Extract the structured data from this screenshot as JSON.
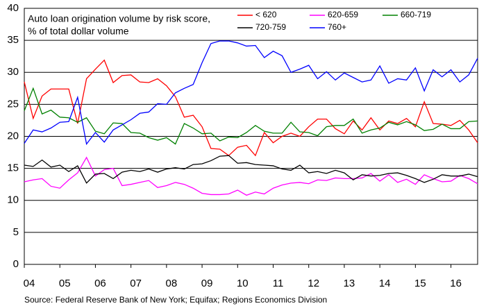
{
  "chart_data": {
    "type": "line",
    "annotation": [
      "Auto loan origination volume by risk score,",
      "% of total dollar volume"
    ],
    "source": "Source: Federal Reserve Bank of New York; Equifax; Regions Economics Division",
    "categories": [
      "04",
      null,
      null,
      null,
      "05",
      null,
      null,
      null,
      "06",
      null,
      null,
      null,
      "07",
      null,
      null,
      null,
      "08",
      null,
      null,
      null,
      "09",
      null,
      null,
      null,
      "10",
      null,
      null,
      null,
      "11",
      null,
      null,
      null,
      "12",
      null,
      null,
      null,
      "13",
      null,
      null,
      null,
      "14",
      null,
      null,
      null,
      "15",
      null,
      null,
      null,
      "16",
      null,
      null,
      null
    ],
    "ylim": [
      0,
      40
    ],
    "yticks": [
      0,
      5,
      10,
      15,
      20,
      25,
      30,
      35,
      40
    ],
    "grid": true,
    "series": [
      {
        "name": "< 620",
        "color": "#ff0000",
        "values": [
          28.5,
          22.8,
          26.3,
          27.4,
          27.4,
          27.4,
          22,
          29,
          30.5,
          31.9,
          28.4,
          29.5,
          29.6,
          28.5,
          28.4,
          29,
          27.9,
          26.2,
          23,
          23.3,
          21.5,
          18.1,
          18,
          17,
          18.3,
          18.6,
          17,
          20.6,
          19,
          20,
          20.5,
          20,
          21.5,
          22.7,
          22.7,
          21.2,
          20.4,
          22.4,
          21,
          22.9,
          21,
          22.4,
          22,
          22.8,
          21.5,
          25.4,
          22,
          21.9,
          21.7,
          22.5,
          21,
          19
        ]
      },
      {
        "name": "620-659",
        "color": "#ff00ff",
        "values": [
          12.9,
          13.2,
          13.4,
          12.2,
          11.9,
          13.2,
          14.3,
          16.7,
          13.8,
          14.8,
          15,
          12.3,
          12.5,
          12.8,
          13.1,
          12,
          12.3,
          12.8,
          12.5,
          11.9,
          11.1,
          10.9,
          10.9,
          11,
          11.6,
          10.8,
          11.3,
          11,
          11.9,
          12.4,
          12.7,
          12.8,
          12.6,
          13.2,
          13.1,
          13.5,
          13.4,
          13.4,
          13.5,
          14.2,
          13,
          14,
          12.8,
          13.3,
          12.5,
          14,
          13.4,
          12.9,
          13,
          13.9,
          13.4,
          12.6
        ]
      },
      {
        "name": "660-719",
        "color": "#008000",
        "values": [
          24,
          27.5,
          23.5,
          24.1,
          23,
          22.9,
          22.2,
          22.9,
          20.8,
          20.4,
          22.1,
          22,
          20.6,
          20.5,
          19.8,
          19.4,
          19.8,
          18.8,
          22,
          21.3,
          20.4,
          20.5,
          19.3,
          19.9,
          19.8,
          20.6,
          21.7,
          20.8,
          20.5,
          20.5,
          22.2,
          20.7,
          20.6,
          20.1,
          21.5,
          21.7,
          21.7,
          22.7,
          20.5,
          21,
          21.3,
          22.2,
          21.8,
          22.3,
          21.8,
          20.9,
          21.1,
          21.9,
          21.2,
          21.2,
          22.3,
          22.4
        ]
      },
      {
        "name": "720-759",
        "color": "#000000",
        "values": [
          15.5,
          15.3,
          16.3,
          15.2,
          15.5,
          14.5,
          15.4,
          12.7,
          14.1,
          14.2,
          13.4,
          14.4,
          14.7,
          14.5,
          14.9,
          14.4,
          14.9,
          15.1,
          14.9,
          15.6,
          15.7,
          16.2,
          16.9,
          17,
          15.8,
          15.9,
          15.6,
          15.5,
          15.4,
          14.9,
          14.7,
          15.5,
          14.3,
          14.5,
          14.2,
          14.7,
          14.3,
          13.2,
          14,
          13.8,
          13.9,
          14.2,
          14.3,
          13.9,
          13.4,
          12.8,
          13.3,
          14,
          13.8,
          13.8,
          14.1,
          13.7
        ]
      },
      {
        "name": "760+",
        "color": "#0000ff",
        "values": [
          18.9,
          21,
          20.7,
          21.3,
          22.2,
          22.3,
          26.1,
          18.8,
          20.6,
          19.1,
          21,
          21.8,
          22.6,
          23.6,
          23.8,
          25.1,
          25,
          26.8,
          27.5,
          28.1,
          31.5,
          34.5,
          34.9,
          34.9,
          34.6,
          34.1,
          34.2,
          32.3,
          33.3,
          32.6,
          30,
          30.5,
          31.1,
          29,
          30.1,
          28.8,
          29.9,
          29.2,
          28.5,
          28.8,
          31,
          28.3,
          29,
          28.8,
          30.7,
          27.1,
          30.4,
          29.3,
          30.4,
          28.5,
          29.6,
          32.2
        ]
      }
    ]
  }
}
